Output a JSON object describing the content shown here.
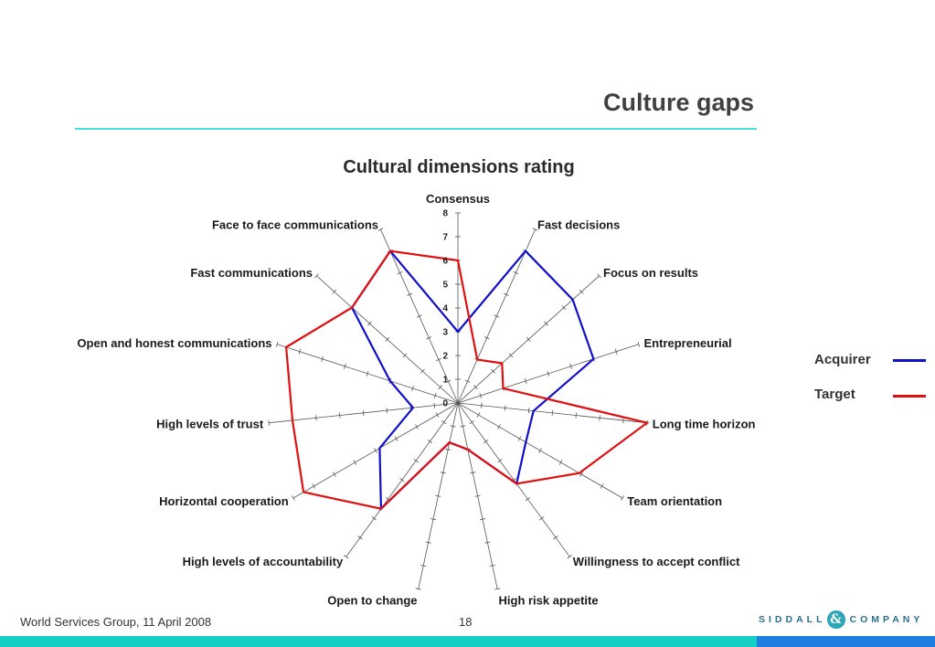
{
  "slide": {
    "title": "Culture gaps",
    "footer_text": "World Services Group, 11 April 2008",
    "page_number": "18",
    "logo": {
      "left": "SIDDALL",
      "amp": "&",
      "right": "COMPANY"
    },
    "colors": {
      "rule": "#48e0d8",
      "footer_teal": "#14d0c4",
      "footer_blue": "#1f7fe0",
      "logo": "#2a6f8f"
    }
  },
  "chart_data": {
    "type": "radar",
    "title": "Cultural dimensions rating",
    "categories": [
      "Consensus",
      "Fast decisions",
      "Focus on results",
      "Entrepreneurial",
      "Long time horizon",
      "Team orientation",
      "Willingness to accept conflict",
      "High risk appetite",
      "Open to change",
      "High levels of accountability",
      "Horizontal cooperation",
      "High levels of trust",
      "Open and honest communications",
      "Fast communications",
      "Face to face communications"
    ],
    "radial_range": [
      0,
      8
    ],
    "radial_ticks": [
      "0",
      "1",
      "2",
      "3",
      "4",
      "5",
      "6",
      "7",
      "8"
    ],
    "series": [
      {
        "name": "Acquirer",
        "color": "#1010cc",
        "values": [
          3,
          7,
          6.5,
          6,
          3.2,
          3.3,
          4.2,
          2,
          1.7,
          5.5,
          3.8,
          1.9,
          3,
          6,
          7
        ]
      },
      {
        "name": "Target",
        "color": "#e01010",
        "values": [
          6,
          2,
          2.5,
          2,
          8,
          5.9,
          4.2,
          2,
          1.7,
          5.5,
          7.5,
          7,
          7.6,
          6,
          7
        ]
      }
    ],
    "legend_position": "right",
    "grid": false
  }
}
